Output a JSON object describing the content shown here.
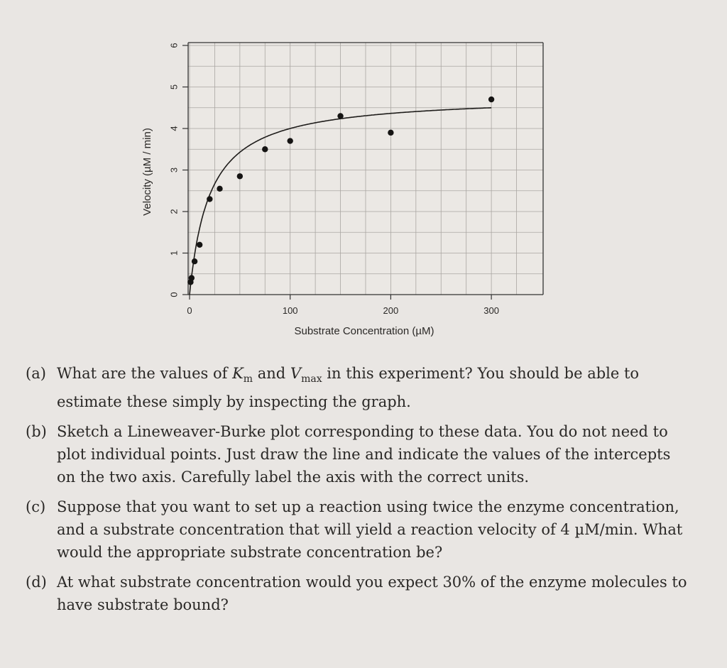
{
  "chart_data": {
    "type": "scatter",
    "xlabel": "Substrate Concentration (µM)",
    "ylabel": "Velocity (µM / min)",
    "xlim": [
      0,
      340
    ],
    "ylim": [
      0,
      6
    ],
    "x_ticks": [
      "0",
      "100",
      "200",
      "300"
    ],
    "y_ticks": [
      "0",
      "1",
      "2",
      "3",
      "4",
      "5",
      "6"
    ],
    "grid": true,
    "points": [
      {
        "x": 1,
        "y": 0.3
      },
      {
        "x": 2,
        "y": 0.4
      },
      {
        "x": 5,
        "y": 0.8
      },
      {
        "x": 10,
        "y": 1.2
      },
      {
        "x": 20,
        "y": 2.3
      },
      {
        "x": 30,
        "y": 2.55
      },
      {
        "x": 50,
        "y": 2.85
      },
      {
        "x": 75,
        "y": 3.5
      },
      {
        "x": 100,
        "y": 3.7
      },
      {
        "x": 150,
        "y": 4.3
      },
      {
        "x": 200,
        "y": 3.9
      },
      {
        "x": 300,
        "y": 4.7
      }
    ],
    "fit": {
      "model": "Michaelis-Menten",
      "Vmax": 4.8,
      "Km": 20,
      "x_range": [
        0,
        300
      ]
    }
  },
  "questions": [
    {
      "label": "(a)",
      "parts": [
        "What are the values of ",
        "K",
        "m",
        " and ",
        "V",
        "max",
        " in this experiment? You should be able to estimate these simply by inspecting the graph."
      ]
    },
    {
      "label": "(b)",
      "text": "Sketch a Lineweaver-Burke plot corresponding to these data. You do not need to plot individual points. Just draw the line and indicate the values of the intercepts on the two axis. Carefully label the axis with the correct units."
    },
    {
      "label": "(c)",
      "text": "Suppose that you want to set up a reaction using twice the enzyme concentration, and a substrate concentration that will yield a reaction velocity of 4 µM/min. What would the appropriate substrate concentration be?"
    },
    {
      "label": "(d)",
      "text": "At what substrate concentration would you expect 30% of the enzyme molecules to have substrate bound?"
    }
  ]
}
